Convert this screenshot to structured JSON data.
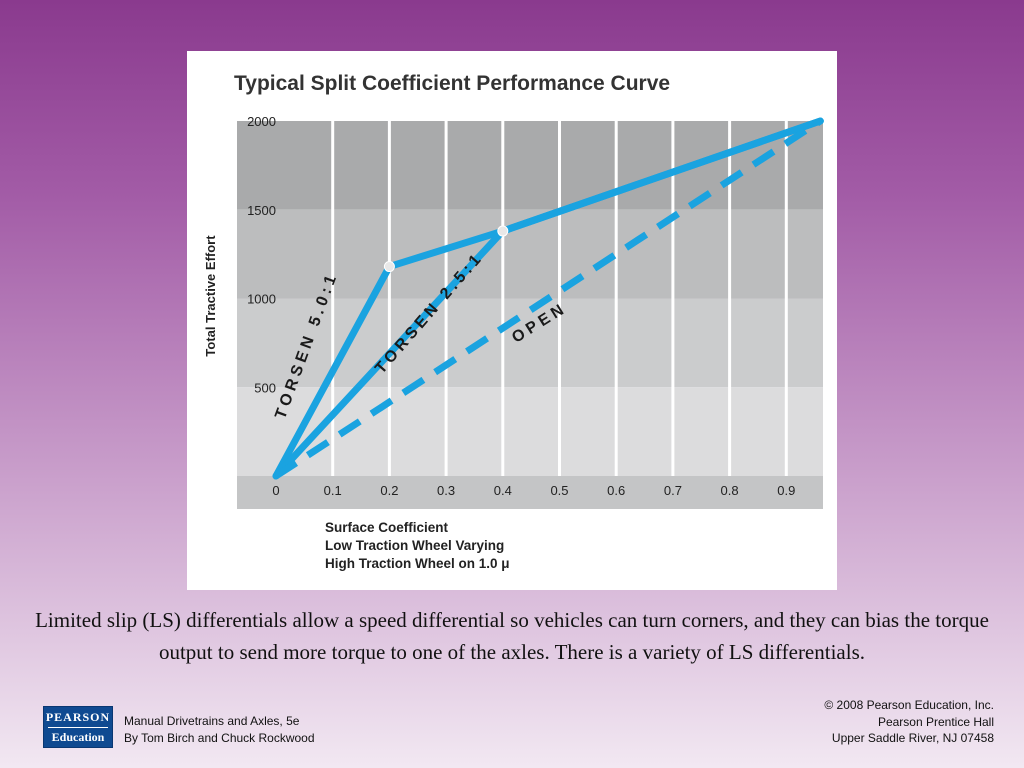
{
  "chart_data": {
    "type": "line",
    "title": "Typical Split Coefficient Performance Curve",
    "ylabel": "Total Tractive Effort",
    "xlabel_lines": [
      "Surface Coefficient",
      "Low Traction Wheel Varying",
      "High Traction Wheel on 1.0 μ"
    ],
    "xlim": [
      0,
      1.0
    ],
    "ylim": [
      0,
      2000
    ],
    "x_ticks": [
      0,
      0.1,
      0.2,
      0.3,
      0.4,
      0.5,
      0.6,
      0.7,
      0.8,
      0.9
    ],
    "x_tick_labels": [
      "0",
      "0.1",
      "0.2",
      "0.3",
      "0.4",
      "0.5",
      "0.6",
      "0.7",
      "0.8",
      "0.9"
    ],
    "y_ticks": [
      500,
      1000,
      1500,
      2000
    ],
    "y_tick_labels": [
      "500",
      "1000",
      "1500",
      "2000"
    ],
    "grid": true,
    "series": [
      {
        "name": "TORSEN 5.0:1",
        "style": "solid",
        "x": [
          0,
          0.2,
          0.4,
          0.96
        ],
        "y": [
          0,
          1180,
          1380,
          2000
        ]
      },
      {
        "name": "TORSEN 2.5:1",
        "style": "solid",
        "x": [
          0,
          0.4,
          0.96
        ],
        "y": [
          0,
          1380,
          2000
        ]
      },
      {
        "name": "OPEN",
        "style": "dashed",
        "x": [
          0,
          0.96
        ],
        "y": [
          0,
          2000
        ]
      }
    ],
    "line_color": "#1aa3e0"
  },
  "caption": "Limited slip (LS) differentials allow a speed differential so vehicles can turn corners, and they can bias the torque output to send more torque to one of the axles. There is a variety of LS differentials.",
  "footer": {
    "book_title": "Manual Drivetrains and Axles, 5e",
    "authors": "By Tom Birch and Chuck Rockwood",
    "copyright": "© 2008 Pearson Education, Inc.",
    "publisher": "Pearson Prentice Hall",
    "location": "Upper Saddle River, NJ 07458"
  },
  "logo": {
    "brand": "PEARSON",
    "sub": "Education"
  }
}
